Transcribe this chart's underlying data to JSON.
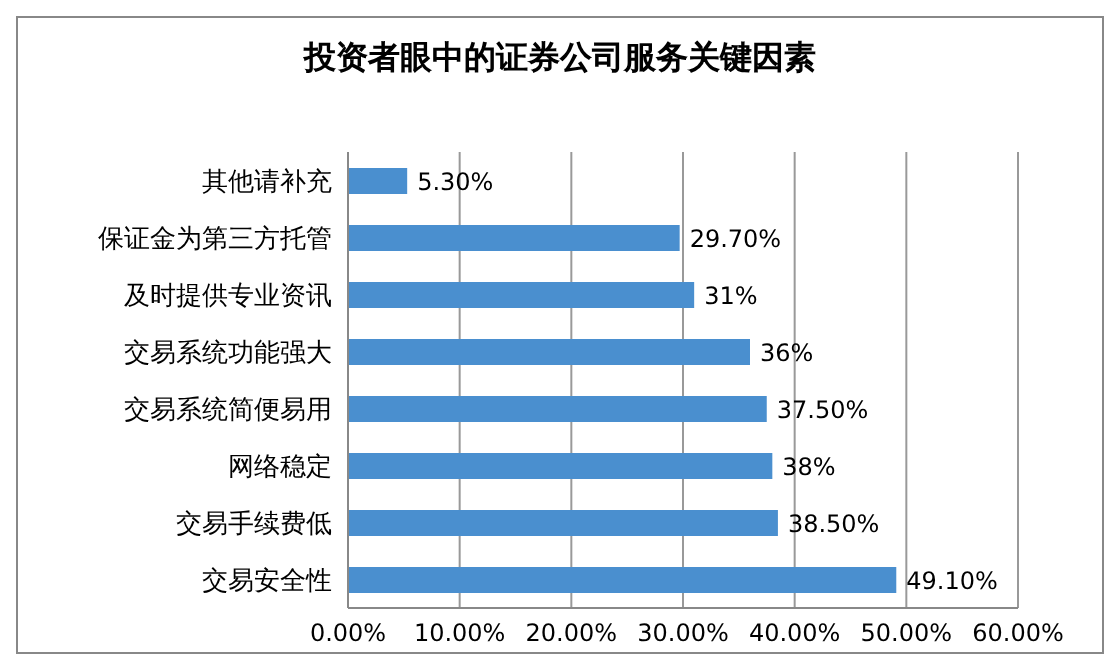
{
  "chart_data": {
    "type": "bar",
    "orientation": "horizontal",
    "title": "投资者眼中的证券公司服务关键因素",
    "categories": [
      "其他请补充",
      "保证金为第三方托管",
      "及时提供专业资讯",
      "交易系统功能强大",
      "交易系统简便易用",
      "网络稳定",
      "交易手续费低",
      "交易安全性"
    ],
    "values": [
      5.3,
      29.7,
      31,
      36,
      37.5,
      38,
      38.5,
      49.1
    ],
    "value_labels": [
      "5.30%",
      "29.70%",
      "31%",
      "36%",
      "37.50%",
      "38%",
      "38.50%",
      "49.10%"
    ],
    "color": "#4a8fcf",
    "xlim": [
      0,
      60
    ],
    "xticks": [
      {
        "value": 0,
        "label": "0.00%"
      },
      {
        "value": 10,
        "label": "10.00%"
      },
      {
        "value": 20,
        "label": "20.00%"
      },
      {
        "value": 30,
        "label": "30.00%"
      },
      {
        "value": 40,
        "label": "40.00%"
      },
      {
        "value": 50,
        "label": "50.00%"
      },
      {
        "value": 60,
        "label": "60.00%"
      }
    ],
    "grid": "x"
  }
}
